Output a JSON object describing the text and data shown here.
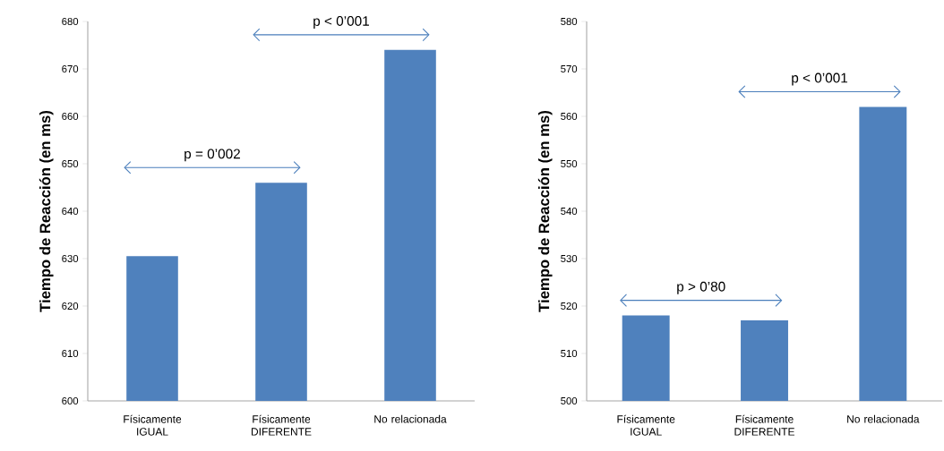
{
  "chart_data": [
    {
      "type": "bar",
      "ylabel": "Tiempo de Reacción (en ms)",
      "categories": [
        "Físicamente IGUAL",
        "Físicamente DIFERENTE",
        "No relacionada"
      ],
      "values": [
        630.5,
        646,
        674
      ],
      "color": "#4f81bd",
      "ylim": [
        600,
        680
      ],
      "yticks": [
        600,
        610,
        620,
        630,
        640,
        650,
        660,
        670,
        680
      ],
      "annotations": [
        "p = 0’002",
        "p < 0’001"
      ]
    },
    {
      "type": "bar",
      "ylabel": "Tiempo de Reacción (en ms)",
      "categories": [
        "Físicamente IGUAL",
        "Físicamente DIFERENTE",
        "No relacionada"
      ],
      "values": [
        518,
        517,
        562
      ],
      "color": "#4f81bd",
      "ylim": [
        500,
        580
      ],
      "yticks": [
        500,
        510,
        520,
        530,
        540,
        550,
        560,
        570,
        580
      ],
      "annotations": [
        "p > 0’80",
        "p < 0’001"
      ]
    }
  ]
}
